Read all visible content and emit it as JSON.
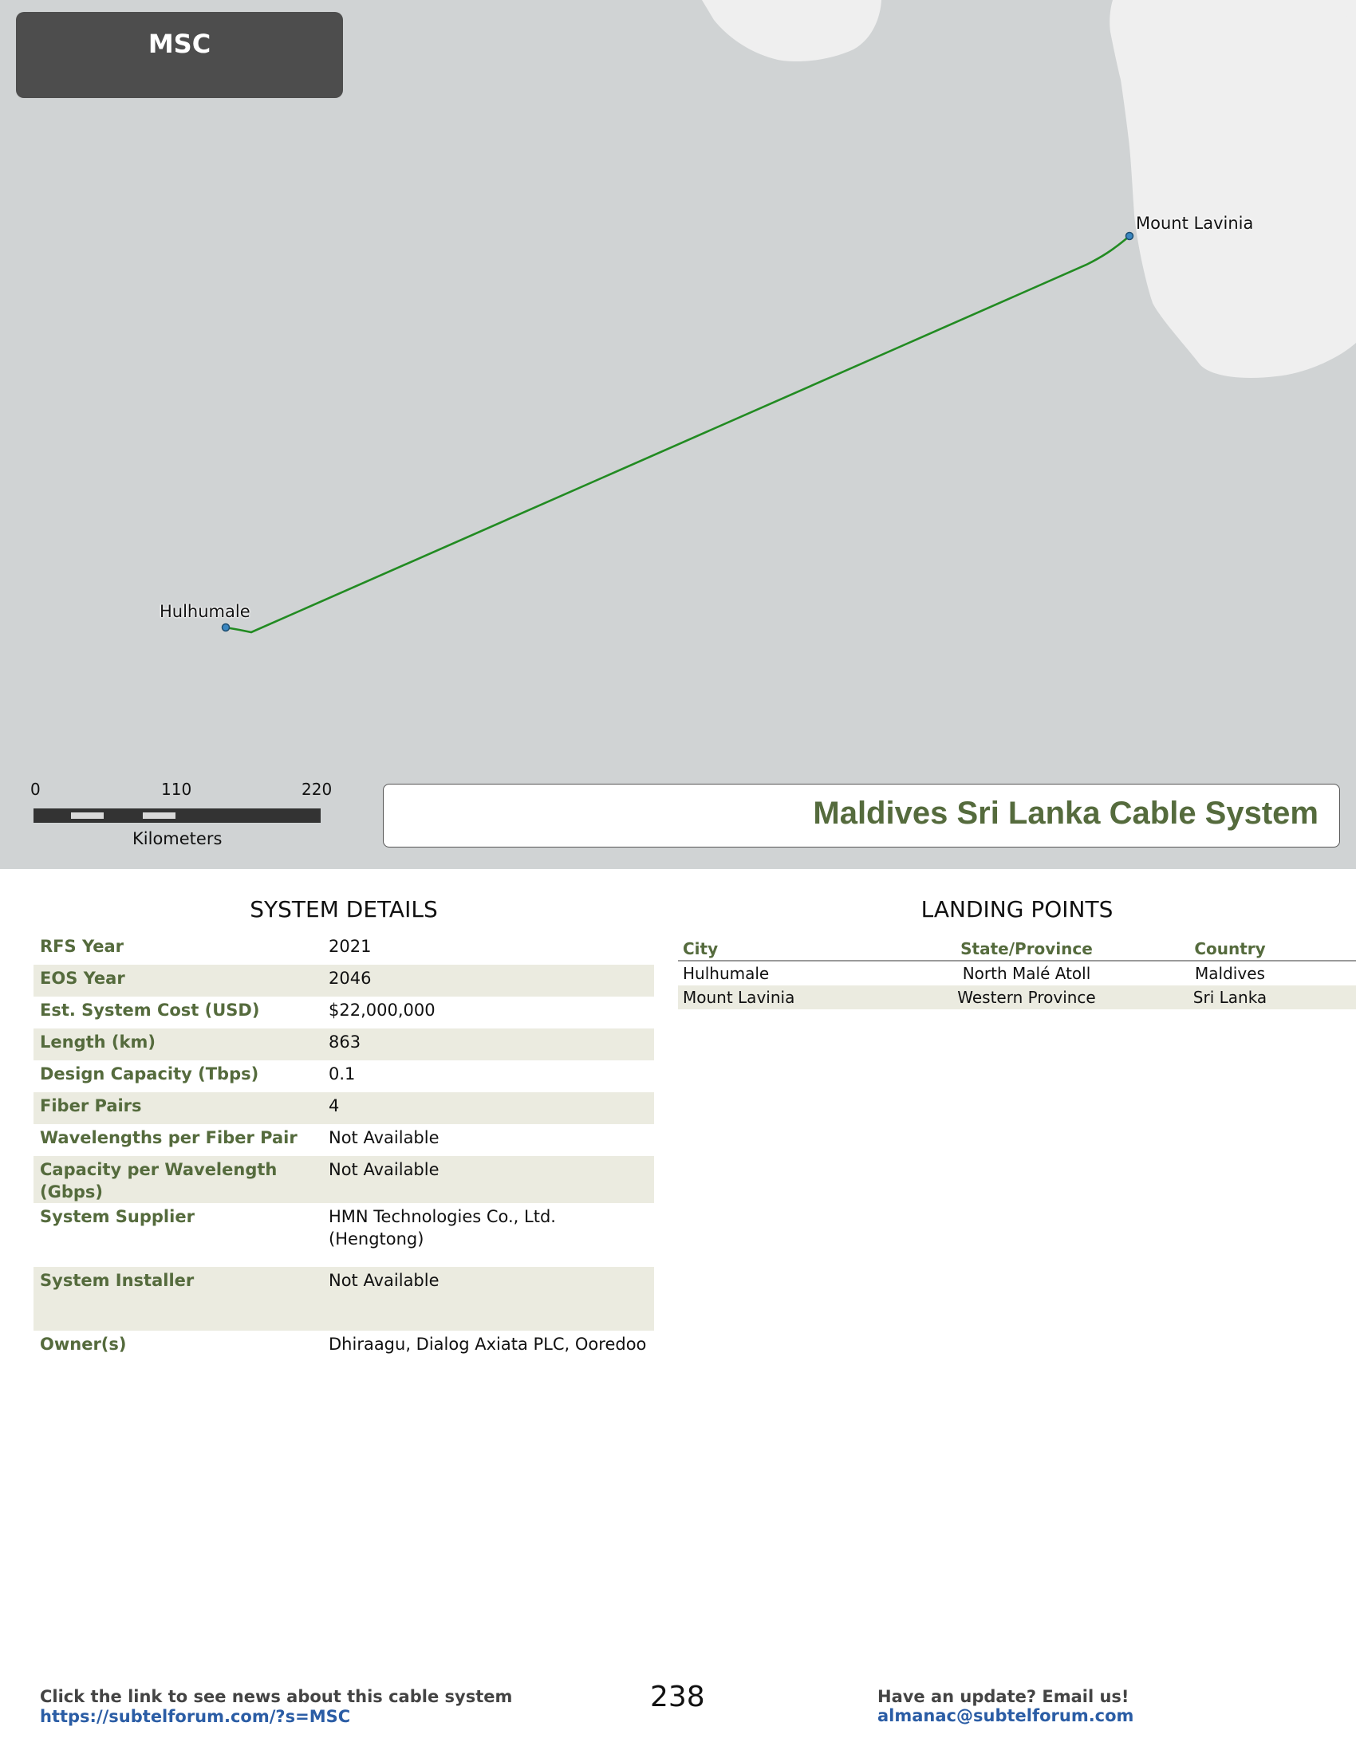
{
  "map": {
    "system_code": "MSC",
    "landing_labels": [
      "Hulhumale",
      "Mount Lavinia"
    ],
    "cable_color": "#228b22",
    "land_color": "#efefef",
    "sea_color": "#d0d3d4",
    "scale": {
      "ticks": [
        "0",
        "110",
        "220"
      ],
      "units": "Kilometers"
    },
    "title": "Maldives Sri Lanka Cable System"
  },
  "system_details": {
    "heading": "SYSTEM DETAILS",
    "rows": [
      {
        "label": "RFS Year",
        "value": "2021"
      },
      {
        "label": "EOS Year",
        "value": "2046"
      },
      {
        "label": "Est. System Cost (USD)",
        "value": "$22,000,000"
      },
      {
        "label": "Length (km)",
        "value": "863"
      },
      {
        "label": "Design Capacity (Tbps)",
        "value": "0.1"
      },
      {
        "label": "Fiber Pairs",
        "value": "4"
      },
      {
        "label": "Wavelengths per Fiber Pair",
        "value": "Not Available"
      },
      {
        "label": "Capacity per Wavelength (Gbps)",
        "value": "Not Available"
      },
      {
        "label": "System Supplier",
        "value": "HMN Technologies Co., Ltd. (Hengtong)"
      },
      {
        "label": "System Installer",
        "value": "Not Available"
      },
      {
        "label": "Owner(s)",
        "value": "Dhiraagu, Dialog Axiata PLC, Ooredoo"
      }
    ]
  },
  "landing_points": {
    "heading": "LANDING POINTS",
    "columns": [
      "City",
      "State/Province",
      "Country"
    ],
    "rows": [
      [
        "Hulhumale",
        "North Malé Atoll",
        "Maldives"
      ],
      [
        "Mount Lavinia",
        "Western Province",
        "Sri Lanka"
      ]
    ]
  },
  "footer": {
    "left_note": "Click the link to see news about this cable system",
    "left_link": "https://subtelforum.com/?s=MSC",
    "page_number": "238",
    "right_note": "Have an update? Email us!",
    "right_link": "almanac@subtelforum.com"
  }
}
